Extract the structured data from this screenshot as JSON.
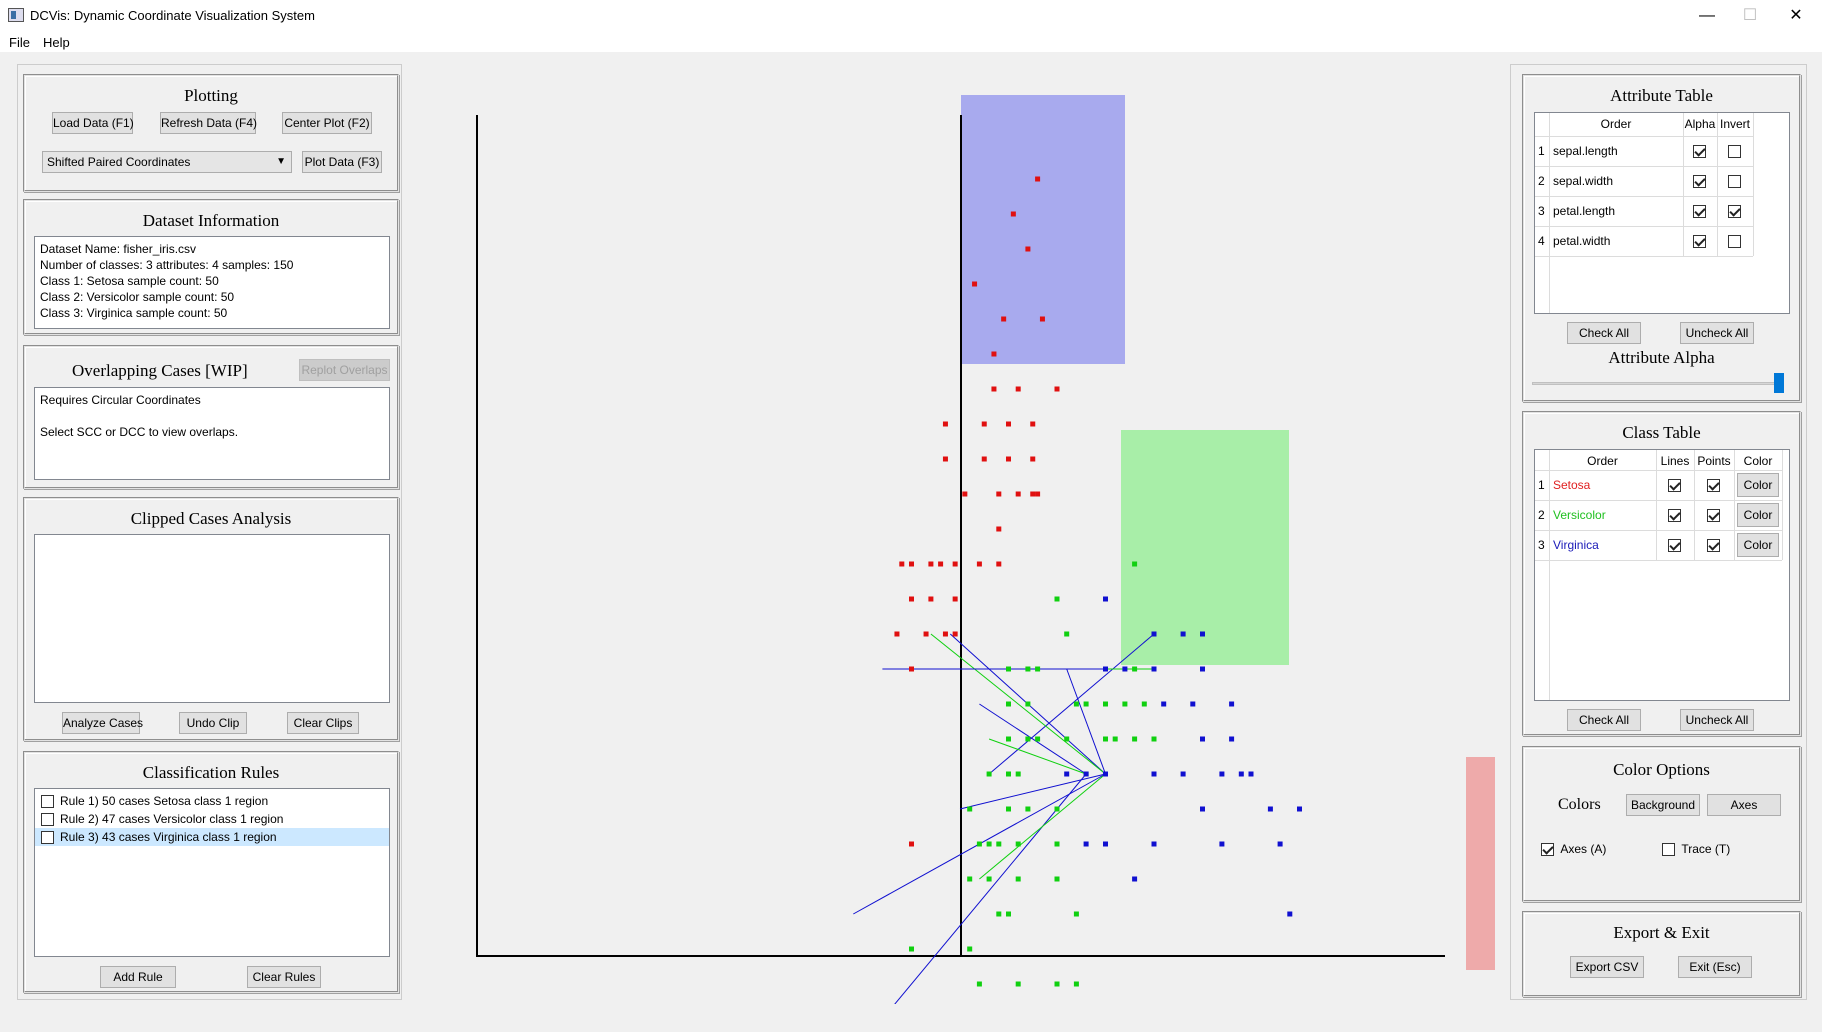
{
  "window": {
    "title": "DCVis: Dynamic Coordinate Visualization System",
    "minimize": "—",
    "maximize": "☐",
    "close": "✕"
  },
  "menu": {
    "file": "File",
    "help": "Help"
  },
  "plotting": {
    "heading": "Plotting",
    "load": "Load Data (F1)",
    "refresh": "Refresh Data (F4)",
    "center": "Center Plot (F2)",
    "plot_type": "Shifted Paired Coordinates",
    "plot": "Plot Data (F3)"
  },
  "dataset": {
    "heading": "Dataset Information",
    "lines": [
      "Dataset Name: fisher_iris.csv",
      "Number of classes: 3 attributes: 4 samples: 150",
      "Class 1: Setosa sample count: 50",
      "Class 2: Versicolor sample count: 50",
      "Class 3: Virginica sample count: 50"
    ]
  },
  "overlap": {
    "heading": "Overlapping Cases [WIP]",
    "replot": "Replot Overlaps",
    "line1": "Requires Circular Coordinates",
    "line2": "Select SCC or DCC to view overlaps."
  },
  "clipped": {
    "heading": "Clipped Cases Analysis",
    "analyze": "Analyze Cases",
    "undo": "Undo Clip",
    "clear": "Clear Clips"
  },
  "rules": {
    "heading": "Classification Rules",
    "items": [
      {
        "label": "Rule 1) 50 cases Setosa class 1 region",
        "checked": false,
        "selected": false
      },
      {
        "label": "Rule 2) 47 cases Versicolor class 1 region",
        "checked": false,
        "selected": false
      },
      {
        "label": "Rule 3) 43 cases Virginica class 1 region",
        "checked": false,
        "selected": true
      }
    ],
    "add": "Add Rule",
    "clear": "Clear Rules"
  },
  "attribute_table": {
    "heading": "Attribute Table",
    "headers": {
      "order": "Order",
      "alpha": "Alpha",
      "invert": "Invert"
    },
    "rows": [
      {
        "num": "1",
        "name": "sepal.length",
        "alpha": true,
        "invert": false
      },
      {
        "num": "2",
        "name": "sepal.width",
        "alpha": true,
        "invert": false
      },
      {
        "num": "3",
        "name": "petal.length",
        "alpha": true,
        "invert": true
      },
      {
        "num": "4",
        "name": "petal.width",
        "alpha": true,
        "invert": false
      }
    ],
    "check_all": "Check All",
    "uncheck_all": "Uncheck All",
    "alpha_label": "Attribute Alpha",
    "alpha_value": 1.0
  },
  "class_table": {
    "heading": "Class Table",
    "headers": {
      "order": "Order",
      "lines": "Lines",
      "points": "Points",
      "color": "Color"
    },
    "rows": [
      {
        "num": "1",
        "name": "Setosa",
        "color": "#e02020",
        "lines": true,
        "points": true,
        "button": "Color"
      },
      {
        "num": "2",
        "name": "Versicolor",
        "color": "#20c020",
        "lines": true,
        "points": true,
        "button": "Color"
      },
      {
        "num": "3",
        "name": "Virginica",
        "color": "#1a1ab8",
        "lines": true,
        "points": true,
        "button": "Color"
      }
    ],
    "check_all": "Check All",
    "uncheck_all": "Uncheck All"
  },
  "color_options": {
    "heading": "Color Options",
    "colors_label": "Colors",
    "background": "Background",
    "axes": "Axes",
    "axes_toggle": {
      "label": "Axes (A)",
      "checked": true
    },
    "trace_toggle": {
      "label": "Trace (T)",
      "checked": false
    }
  },
  "export": {
    "heading": "Export & Exit",
    "csv": "Export CSV",
    "exit": "Exit (Esc)"
  },
  "colors": {
    "setosa": "#e01010",
    "versicolor": "#10d010",
    "virginica": "#1010d0",
    "region_blue": "#a8aaee",
    "region_green": "#a8eea8",
    "region_red": "#eeaaaa"
  },
  "chart_data": {
    "type": "scatter",
    "title": "",
    "series": [
      {
        "name": "Setosa",
        "color": "#e01010",
        "points": [
          [
            0.8,
            6.0
          ],
          [
            0.55,
            5.5
          ],
          [
            0.7,
            5.0
          ],
          [
            0.15,
            4.5
          ],
          [
            0.35,
            3.5
          ],
          [
            0.45,
            4.0
          ],
          [
            0.85,
            4.0
          ],
          [
            0.35,
            3.0
          ],
          [
            0.6,
            3.0
          ],
          [
            1.0,
            3.0
          ],
          [
            -0.15,
            2.5
          ],
          [
            0.25,
            2.5
          ],
          [
            0.5,
            2.5
          ],
          [
            0.75,
            2.5
          ],
          [
            -0.15,
            2.0
          ],
          [
            0.25,
            2.0
          ],
          [
            0.5,
            2.0
          ],
          [
            0.75,
            2.0
          ],
          [
            0.05,
            1.5
          ],
          [
            0.4,
            1.5
          ],
          [
            0.6,
            1.5
          ],
          [
            0.75,
            1.5
          ],
          [
            0.8,
            1.5
          ],
          [
            0.4,
            1.0
          ],
          [
            -0.6,
            0.5
          ],
          [
            -0.5,
            0.5
          ],
          [
            -0.3,
            0.5
          ],
          [
            -0.2,
            0.5
          ],
          [
            -0.05,
            0.5
          ],
          [
            0.2,
            0.5
          ],
          [
            0.4,
            0.5
          ],
          [
            -0.5,
            0.0
          ],
          [
            -0.3,
            0.0
          ],
          [
            -0.05,
            0.0
          ],
          [
            -0.65,
            -0.5
          ],
          [
            -0.35,
            -0.5
          ],
          [
            -0.15,
            -0.5
          ],
          [
            -0.05,
            -0.5
          ],
          [
            -0.5,
            -1.0
          ],
          [
            -0.5,
            -3.5
          ]
        ]
      },
      {
        "name": "Versicolor",
        "color": "#10d010",
        "points": [
          [
            1.8,
            0.5
          ],
          [
            1.0,
            0.0
          ],
          [
            1.1,
            -0.5
          ],
          [
            1.8,
            -1.0
          ],
          [
            1.5,
            -1.5
          ],
          [
            1.7,
            -1.5
          ],
          [
            1.9,
            -1.5
          ],
          [
            1.1,
            -2.0
          ],
          [
            1.5,
            -2.0
          ],
          [
            1.6,
            -2.0
          ],
          [
            1.8,
            -2.0
          ],
          [
            2.0,
            -2.0
          ],
          [
            1.5,
            -2.5
          ],
          [
            1.3,
            -2.5
          ],
          [
            0.5,
            -1.0
          ],
          [
            0.7,
            -1.0
          ],
          [
            0.8,
            -1.0
          ],
          [
            0.5,
            -1.5
          ],
          [
            0.7,
            -1.5
          ],
          [
            1.2,
            -1.5
          ],
          [
            1.3,
            -1.5
          ],
          [
            0.5,
            -2.0
          ],
          [
            0.7,
            -2.0
          ],
          [
            0.8,
            -2.0
          ],
          [
            0.1,
            -3.0
          ],
          [
            0.5,
            -3.0
          ],
          [
            0.7,
            -3.0
          ],
          [
            1.0,
            -3.0
          ],
          [
            0.2,
            -3.5
          ],
          [
            0.3,
            -3.5
          ],
          [
            0.4,
            -3.5
          ],
          [
            0.6,
            -3.5
          ],
          [
            0.1,
            -4.0
          ],
          [
            0.3,
            -4.0
          ],
          [
            0.6,
            -4.0
          ],
          [
            0.4,
            -4.5
          ],
          [
            0.5,
            -4.5
          ],
          [
            1.2,
            -4.5
          ],
          [
            0.1,
            -5.0
          ],
          [
            1.0,
            -4.0
          ],
          [
            1.0,
            -3.5
          ],
          [
            0.3,
            -2.5
          ],
          [
            0.5,
            -2.5
          ],
          [
            0.6,
            -2.5
          ],
          [
            0.2,
            -5.5
          ],
          [
            0.6,
            -5.5
          ],
          [
            1.0,
            -5.5
          ],
          [
            1.2,
            -5.5
          ],
          [
            -0.5,
            -5.0
          ]
        ]
      },
      {
        "name": "Virginica",
        "color": "#1010d0",
        "points": [
          [
            1.3,
            -2.5
          ],
          [
            1.5,
            -2.5
          ],
          [
            2.0,
            -0.5
          ],
          [
            2.5,
            -0.5
          ],
          [
            2.3,
            -0.5
          ],
          [
            2.1,
            -1.5
          ],
          [
            2.3,
            -2.5
          ],
          [
            1.1,
            -2.5
          ],
          [
            2.0,
            -1.0
          ],
          [
            2.5,
            -1.0
          ],
          [
            1.5,
            -1.0
          ],
          [
            1.7,
            -1.0
          ],
          [
            2.8,
            -1.5
          ],
          [
            2.4,
            -1.5
          ],
          [
            2.0,
            -2.5
          ],
          [
            1.8,
            -4.0
          ],
          [
            2.5,
            -3.0
          ],
          [
            2.7,
            -2.5
          ],
          [
            2.0,
            -3.5
          ],
          [
            1.3,
            -3.5
          ],
          [
            1.5,
            -3.5
          ],
          [
            3.4,
            -4.5
          ],
          [
            1.5,
            0.0
          ],
          [
            2.9,
            -2.5
          ],
          [
            2.8,
            -2.0
          ],
          [
            2.5,
            -2.0
          ],
          [
            3.0,
            -2.5
          ],
          [
            2.7,
            -3.5
          ],
          [
            3.3,
            -3.5
          ],
          [
            3.5,
            -3.0
          ],
          [
            3.2,
            -3.0
          ]
        ]
      }
    ],
    "regions": [
      {
        "class": "Virginica",
        "color": "#a8aaee"
      },
      {
        "class": "Versicolor",
        "color": "#a8eea8"
      },
      {
        "class": "Setosa",
        "color": "#eeaaaa"
      }
    ]
  }
}
